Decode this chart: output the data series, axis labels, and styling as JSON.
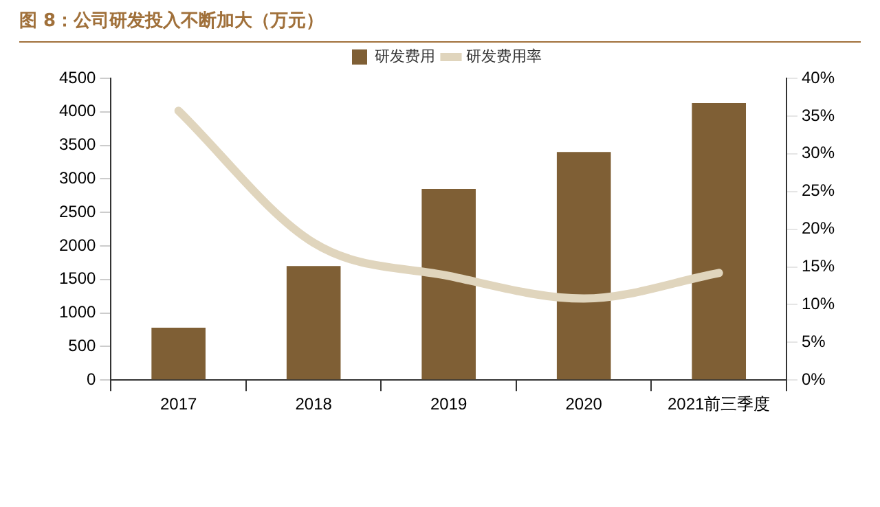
{
  "chart_data": {
    "type": "bar",
    "title": "图 8：公司研发投入不断加大（万元）",
    "categories": [
      "2017",
      "2018",
      "2019",
      "2020",
      "2021前三季度"
    ],
    "series": [
      {
        "name": "研发费用",
        "color": "#7f5f35",
        "values": [
          780,
          1700,
          2850,
          3400,
          4130
        ]
      },
      {
        "name": "研发费用率",
        "type": "line",
        "axis": "y2",
        "color": "#e0d5bd",
        "values": [
          35.7,
          18.2,
          13.8,
          10.8,
          14.2
        ]
      }
    ],
    "ylim": [
      0,
      4500
    ],
    "yticks": [
      0,
      500,
      1000,
      1500,
      2000,
      2500,
      3000,
      3500,
      4000,
      4500
    ],
    "y2lim": [
      0,
      40
    ],
    "y2ticks": [
      {
        "value": 0,
        "label": "0%"
      },
      {
        "value": 5,
        "label": "5%"
      },
      {
        "value": 10,
        "label": "10%"
      },
      {
        "value": 15,
        "label": "15%"
      },
      {
        "value": 20,
        "label": "20%"
      },
      {
        "value": 25,
        "label": "25%"
      },
      {
        "value": 30,
        "label": "30%"
      },
      {
        "value": 35,
        "label": "35%"
      },
      {
        "value": 40,
        "label": "40%"
      }
    ],
    "grid": false,
    "legend": "top",
    "marker": "none"
  }
}
